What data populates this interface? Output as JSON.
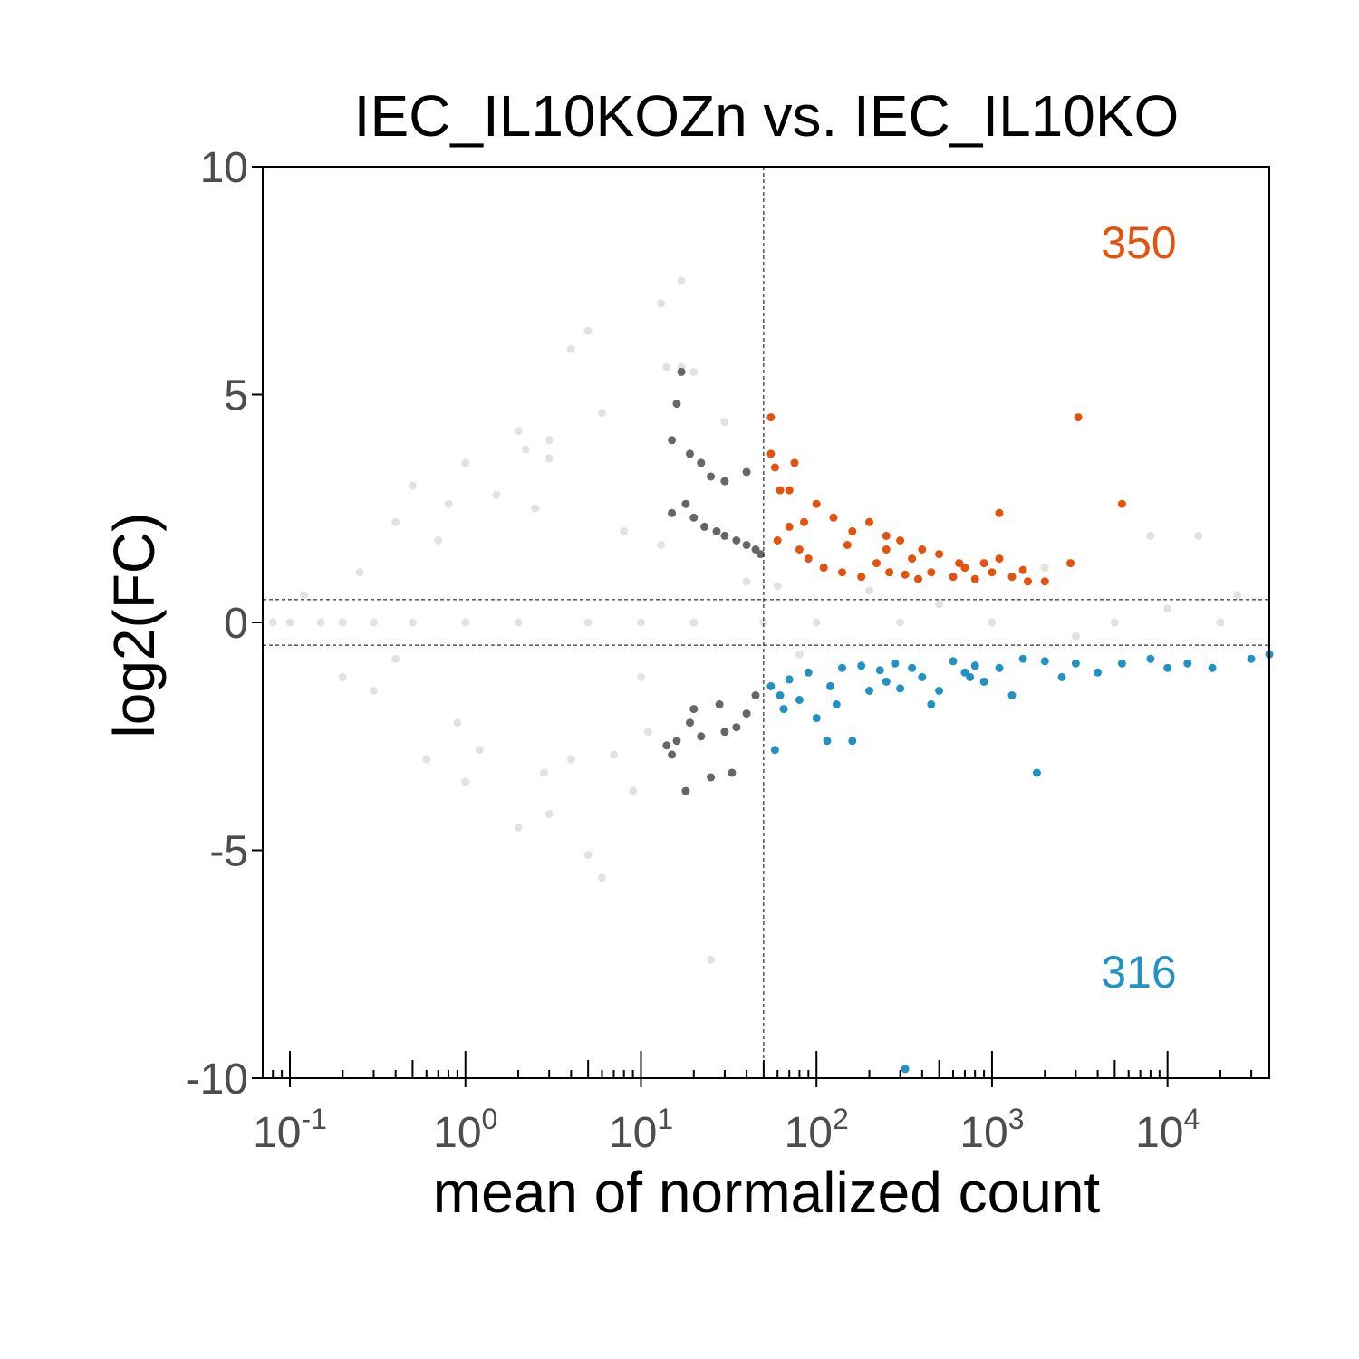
{
  "chart_data": {
    "type": "scatter",
    "title": "IEC_IL10KOZn vs. IEC_IL10KO",
    "xlabel": "mean of normalized count",
    "ylabel": "log2(FC)",
    "x_scale": "log10",
    "xlim": [
      0.07,
      38000
    ],
    "ylim": [
      -10,
      10
    ],
    "x_ticks": [
      {
        "base": "10",
        "exp": "-1",
        "value": 0.1
      },
      {
        "base": "10",
        "exp": "0",
        "value": 1
      },
      {
        "base": "10",
        "exp": "1",
        "value": 10
      },
      {
        "base": "10",
        "exp": "2",
        "value": 100
      },
      {
        "base": "10",
        "exp": "3",
        "value": 1000
      },
      {
        "base": "10",
        "exp": "4",
        "value": 10000
      }
    ],
    "y_ticks": [
      {
        "label": "10",
        "value": 10
      },
      {
        "label": "5",
        "value": 5
      },
      {
        "label": "0",
        "value": 0
      },
      {
        "label": "-5",
        "value": -5
      },
      {
        "label": "-10",
        "value": -10
      }
    ],
    "thresholds": {
      "mean_count": 50,
      "log2fc": [
        0.5,
        -0.5
      ]
    },
    "grid": false,
    "counts": {
      "up": "350",
      "down": "316"
    },
    "colors": {
      "up": "#E3530D",
      "down": "#2292C2",
      "low_count_significant": "#666666",
      "not_significant": "#E2E2E2",
      "axis": "#000000",
      "tick_label": "#4D4D4D"
    },
    "series": [
      {
        "category": "up",
        "points": [
          [
            55,
            4.5
          ],
          [
            55,
            3.7
          ],
          [
            58,
            3.4
          ],
          [
            62,
            2.9
          ],
          [
            70,
            2.9
          ],
          [
            75,
            3.5
          ],
          [
            100,
            2.6
          ],
          [
            125,
            2.3
          ],
          [
            160,
            2.0
          ],
          [
            200,
            2.2
          ],
          [
            250,
            1.9
          ],
          [
            300,
            1.8
          ],
          [
            400,
            1.6
          ],
          [
            500,
            1.5
          ],
          [
            700,
            1.2
          ],
          [
            900,
            1.3
          ],
          [
            1100,
            1.4
          ],
          [
            1300,
            1.0
          ],
          [
            1600,
            0.9
          ],
          [
            2000,
            0.9
          ],
          [
            2800,
            1.3
          ],
          [
            3100,
            4.5
          ],
          [
            5500,
            2.6
          ],
          [
            1100,
            2.4
          ],
          [
            60,
            1.8
          ],
          [
            80,
            1.6
          ],
          [
            90,
            1.4
          ],
          [
            110,
            1.2
          ],
          [
            140,
            1.1
          ],
          [
            180,
            1.0
          ],
          [
            220,
            1.3
          ],
          [
            260,
            1.1
          ],
          [
            320,
            1.05
          ],
          [
            380,
            0.95
          ],
          [
            450,
            1.1
          ],
          [
            600,
            1.0
          ],
          [
            800,
            0.95
          ],
          [
            1000,
            1.1
          ],
          [
            70,
            2.1
          ],
          [
            85,
            2.2
          ],
          [
            150,
            1.7
          ],
          [
            350,
            1.4
          ],
          [
            650,
            1.3
          ],
          [
            1500,
            1.15
          ],
          [
            250,
            1.6
          ]
        ]
      },
      {
        "category": "down",
        "points": [
          [
            55,
            -1.4
          ],
          [
            58,
            -2.8
          ],
          [
            62,
            -1.6
          ],
          [
            65,
            -1.9
          ],
          [
            80,
            -1.7
          ],
          [
            100,
            -2.1
          ],
          [
            115,
            -2.6
          ],
          [
            130,
            -1.8
          ],
          [
            160,
            -2.6
          ],
          [
            200,
            -1.5
          ],
          [
            250,
            -1.3
          ],
          [
            320,
            -9.8
          ],
          [
            400,
            -1.2
          ],
          [
            450,
            -1.8
          ],
          [
            500,
            -1.5
          ],
          [
            700,
            -1.1
          ],
          [
            900,
            -1.3
          ],
          [
            1100,
            -1.0
          ],
          [
            1300,
            -1.6
          ],
          [
            1800,
            -3.3
          ],
          [
            2500,
            -1.2
          ],
          [
            3000,
            -0.9
          ],
          [
            4000,
            -1.1
          ],
          [
            5500,
            -0.9
          ],
          [
            8000,
            -0.8
          ],
          [
            10000,
            -1.0
          ],
          [
            13000,
            -0.9
          ],
          [
            18000,
            -1.0
          ],
          [
            30000,
            -0.8
          ],
          [
            38000,
            -0.7
          ],
          [
            70,
            -1.25
          ],
          [
            90,
            -1.1
          ],
          [
            140,
            -1.0
          ],
          [
            180,
            -0.95
          ],
          [
            230,
            -1.05
          ],
          [
            280,
            -0.9
          ],
          [
            350,
            -1.0
          ],
          [
            600,
            -0.85
          ],
          [
            800,
            -0.95
          ],
          [
            1500,
            -0.8
          ],
          [
            2000,
            -0.85
          ],
          [
            120,
            -1.4
          ],
          [
            300,
            -1.45
          ],
          [
            750,
            -1.2
          ]
        ]
      },
      {
        "category": "low_count_significant",
        "points": [
          [
            17,
            5.5
          ],
          [
            16,
            4.8
          ],
          [
            15,
            4.0
          ],
          [
            19,
            3.7
          ],
          [
            22,
            3.5
          ],
          [
            25,
            3.2
          ],
          [
            30,
            3.1
          ],
          [
            40,
            3.3
          ],
          [
            15,
            2.4
          ],
          [
            18,
            2.6
          ],
          [
            20,
            2.3
          ],
          [
            23,
            2.1
          ],
          [
            27,
            2.0
          ],
          [
            30,
            1.9
          ],
          [
            35,
            1.8
          ],
          [
            40,
            1.7
          ],
          [
            45,
            1.6
          ],
          [
            48,
            1.5
          ],
          [
            16,
            -2.6
          ],
          [
            19,
            -2.2
          ],
          [
            22,
            -2.5
          ],
          [
            25,
            -3.4
          ],
          [
            18,
            -3.7
          ],
          [
            15,
            -2.9
          ],
          [
            33,
            -3.3
          ],
          [
            40,
            -2.0
          ],
          [
            45,
            -1.6
          ],
          [
            28,
            -1.8
          ],
          [
            35,
            -2.3
          ],
          [
            20,
            -1.9
          ],
          [
            30,
            -2.4
          ],
          [
            14,
            -2.7
          ]
        ]
      },
      {
        "category": "not_significant",
        "points": [
          [
            0.08,
            0
          ],
          [
            0.1,
            0
          ],
          [
            0.15,
            0
          ],
          [
            0.2,
            0
          ],
          [
            0.3,
            0
          ],
          [
            0.5,
            0
          ],
          [
            1,
            0
          ],
          [
            2,
            0
          ],
          [
            5,
            0
          ],
          [
            10,
            0
          ],
          [
            20,
            0
          ],
          [
            50,
            0
          ],
          [
            100,
            0
          ],
          [
            300,
            0
          ],
          [
            1000,
            0
          ],
          [
            5000,
            0
          ],
          [
            20000,
            0
          ],
          [
            13,
            7.0
          ],
          [
            17,
            7.5
          ],
          [
            5,
            6.4
          ],
          [
            4,
            6.0
          ],
          [
            2,
            4.2
          ],
          [
            3,
            4.0
          ],
          [
            1,
            3.5
          ],
          [
            0.5,
            3.0
          ],
          [
            1.5,
            2.8
          ],
          [
            2,
            -4.5
          ],
          [
            3,
            -4.2
          ],
          [
            1,
            -3.5
          ],
          [
            0.6,
            -3.0
          ],
          [
            5,
            -5.1
          ],
          [
            6,
            -5.6
          ],
          [
            25,
            -7.4
          ],
          [
            14,
            5.6
          ],
          [
            17,
            5.6
          ],
          [
            20,
            5.5
          ],
          [
            30,
            4.4
          ],
          [
            0.4,
            2.2
          ],
          [
            0.7,
            1.8
          ],
          [
            2.5,
            2.5
          ],
          [
            8,
            2.0
          ],
          [
            0.3,
            -1.5
          ],
          [
            0.9,
            -2.2
          ],
          [
            4,
            -3.0
          ],
          [
            10,
            -1.2
          ],
          [
            9,
            -3.7
          ],
          [
            3,
            3.6
          ],
          [
            2.2,
            3.8
          ],
          [
            6,
            4.6
          ],
          [
            0.8,
            2.6
          ],
          [
            1.2,
            -2.8
          ],
          [
            2.8,
            -3.3
          ],
          [
            7,
            -2.9
          ],
          [
            11,
            -2.4
          ],
          [
            13,
            1.7
          ],
          [
            0.25,
            1.1
          ],
          [
            0.2,
            -1.2
          ],
          [
            0.12,
            0.6
          ],
          [
            0.4,
            -0.8
          ],
          [
            8000,
            1.9
          ],
          [
            15000,
            1.9
          ],
          [
            25000,
            0.6
          ],
          [
            2000,
            1.2
          ],
          [
            60,
            0.8
          ],
          [
            200,
            0.7
          ],
          [
            500,
            0.4
          ],
          [
            3000,
            -0.3
          ],
          [
            10000,
            0.3
          ],
          [
            80,
            -0.7
          ],
          [
            40,
            0.9
          ]
        ]
      }
    ]
  }
}
